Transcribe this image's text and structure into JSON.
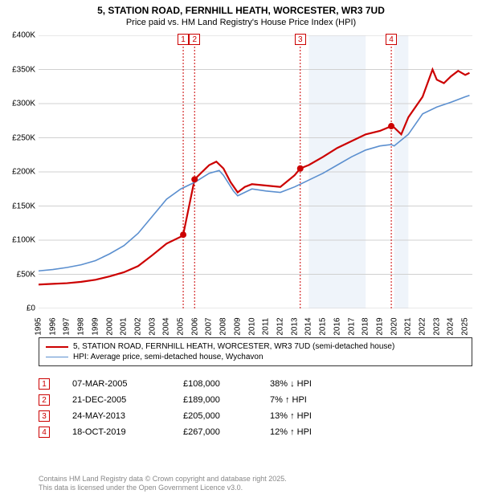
{
  "title": "5, STATION ROAD, FERNHILL HEATH, WORCESTER, WR3 7UD",
  "subtitle": "Price paid vs. HM Land Registry's House Price Index (HPI)",
  "chart": {
    "type": "line",
    "background_color": "#ffffff",
    "grid_color": "#d0d0d0",
    "xlim": [
      1995,
      2025.5
    ],
    "ylim": [
      0,
      400000
    ],
    "ytick_step": 50000,
    "ytick_labels": [
      "£0",
      "£50K",
      "£100K",
      "£150K",
      "£200K",
      "£250K",
      "£300K",
      "£350K",
      "£400K"
    ],
    "xticks": [
      1995,
      1996,
      1997,
      1998,
      1999,
      2000,
      2001,
      2002,
      2003,
      2004,
      2005,
      2006,
      2007,
      2008,
      2009,
      2010,
      2011,
      2012,
      2013,
      2014,
      2015,
      2016,
      2017,
      2018,
      2019,
      2020,
      2021,
      2022,
      2023,
      2024,
      2025
    ],
    "shaded_ranges": [
      {
        "x0": 2014,
        "x1": 2018
      },
      {
        "x0": 2020,
        "x1": 2021
      }
    ],
    "series": [
      {
        "name": "5, STATION ROAD, FERNHILL HEATH, WORCESTER, WR3 7UD (semi-detached house)",
        "color": "#cc0000",
        "line_width": 2.2,
        "points": [
          [
            1995,
            35000
          ],
          [
            1996,
            36000
          ],
          [
            1997,
            37000
          ],
          [
            1998,
            39000
          ],
          [
            1999,
            42000
          ],
          [
            2000,
            47000
          ],
          [
            2001,
            53000
          ],
          [
            2002,
            62000
          ],
          [
            2003,
            78000
          ],
          [
            2004,
            95000
          ],
          [
            2005,
            105000
          ],
          [
            2005.17,
            108000
          ],
          [
            2005.97,
            189000
          ],
          [
            2006.5,
            200000
          ],
          [
            2007,
            210000
          ],
          [
            2007.5,
            215000
          ],
          [
            2008,
            205000
          ],
          [
            2008.5,
            185000
          ],
          [
            2009,
            170000
          ],
          [
            2009.5,
            178000
          ],
          [
            2010,
            182000
          ],
          [
            2011,
            180000
          ],
          [
            2012,
            178000
          ],
          [
            2013,
            195000
          ],
          [
            2013.4,
            205000
          ],
          [
            2014,
            210000
          ],
          [
            2015,
            222000
          ],
          [
            2016,
            235000
          ],
          [
            2017,
            245000
          ],
          [
            2018,
            255000
          ],
          [
            2019,
            260000
          ],
          [
            2019.8,
            267000
          ],
          [
            2020,
            265000
          ],
          [
            2020.5,
            255000
          ],
          [
            2021,
            280000
          ],
          [
            2022,
            310000
          ],
          [
            2022.7,
            350000
          ],
          [
            2023,
            335000
          ],
          [
            2023.5,
            330000
          ],
          [
            2024,
            340000
          ],
          [
            2024.5,
            348000
          ],
          [
            2025,
            342000
          ],
          [
            2025.3,
            345000
          ]
        ]
      },
      {
        "name": "HPI: Average price, semi-detached house, Wychavon",
        "color": "#5b8fcf",
        "line_width": 1.6,
        "points": [
          [
            1995,
            55000
          ],
          [
            1996,
            57000
          ],
          [
            1997,
            60000
          ],
          [
            1998,
            64000
          ],
          [
            1999,
            70000
          ],
          [
            2000,
            80000
          ],
          [
            2001,
            92000
          ],
          [
            2002,
            110000
          ],
          [
            2003,
            135000
          ],
          [
            2004,
            160000
          ],
          [
            2005,
            175000
          ],
          [
            2006,
            185000
          ],
          [
            2007,
            198000
          ],
          [
            2007.7,
            202000
          ],
          [
            2008,
            195000
          ],
          [
            2008.7,
            172000
          ],
          [
            2009,
            165000
          ],
          [
            2010,
            175000
          ],
          [
            2011,
            172000
          ],
          [
            2012,
            170000
          ],
          [
            2013,
            178000
          ],
          [
            2013.4,
            182000
          ],
          [
            2014,
            188000
          ],
          [
            2015,
            198000
          ],
          [
            2016,
            210000
          ],
          [
            2017,
            222000
          ],
          [
            2018,
            232000
          ],
          [
            2019,
            238000
          ],
          [
            2019.8,
            240000
          ],
          [
            2020,
            238000
          ],
          [
            2021,
            255000
          ],
          [
            2022,
            285000
          ],
          [
            2023,
            295000
          ],
          [
            2024,
            302000
          ],
          [
            2025,
            310000
          ],
          [
            2025.3,
            312000
          ]
        ]
      }
    ],
    "sale_markers": [
      {
        "n": 1,
        "x": 2005.17,
        "y": 108000
      },
      {
        "n": 2,
        "x": 2005.97,
        "y": 189000
      },
      {
        "n": 3,
        "x": 2013.4,
        "y": 205000
      },
      {
        "n": 4,
        "x": 2019.8,
        "y": 267000
      }
    ]
  },
  "legend": [
    {
      "label": "5, STATION ROAD, FERNHILL HEATH, WORCESTER, WR3 7UD (semi-detached house)",
      "color": "#cc0000",
      "width": 2.2
    },
    {
      "label": "HPI: Average price, semi-detached house, Wychavon",
      "color": "#5b8fcf",
      "width": 1.6
    }
  ],
  "sales_table": [
    {
      "n": "1",
      "date": "07-MAR-2005",
      "price": "£108,000",
      "pct": "38% ↓ HPI"
    },
    {
      "n": "2",
      "date": "21-DEC-2005",
      "price": "£189,000",
      "pct": "7% ↑ HPI"
    },
    {
      "n": "3",
      "date": "24-MAY-2013",
      "price": "£205,000",
      "pct": "13% ↑ HPI"
    },
    {
      "n": "4",
      "date": "18-OCT-2019",
      "price": "£267,000",
      "pct": "12% ↑ HPI"
    }
  ],
  "footer": {
    "line1": "Contains HM Land Registry data © Crown copyright and database right 2025.",
    "line2": "This data is licensed under the Open Government Licence v3.0."
  }
}
